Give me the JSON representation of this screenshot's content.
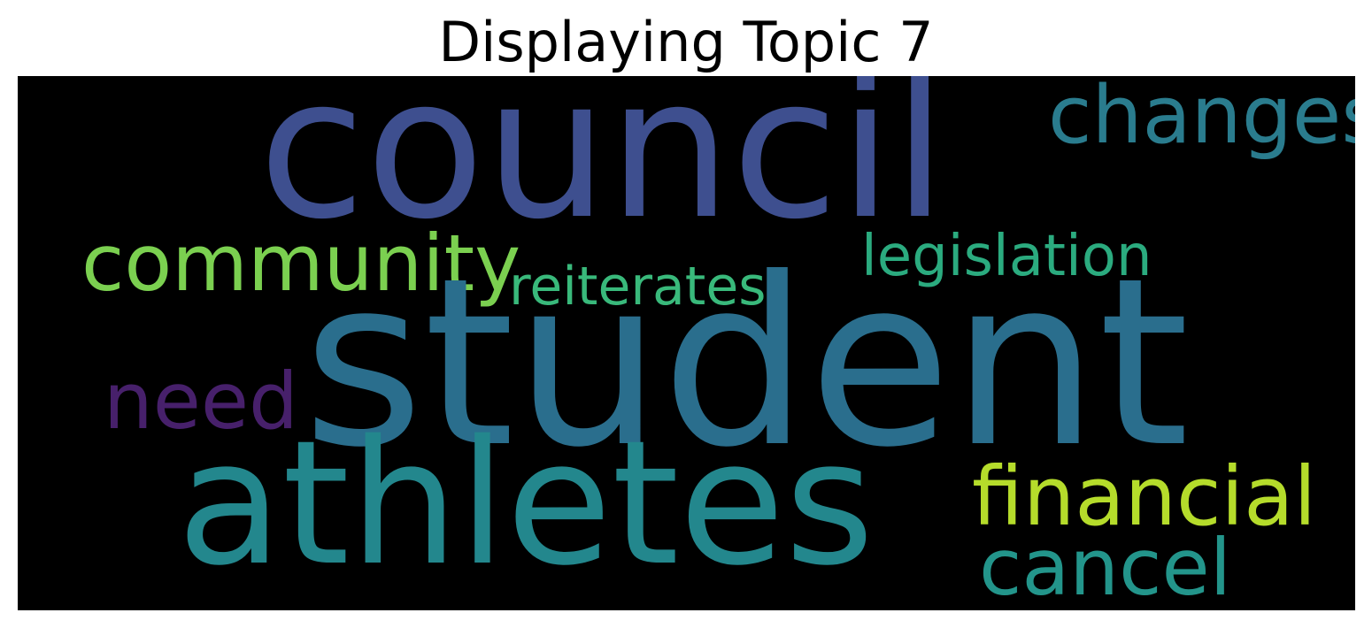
{
  "title": "Displaying Topic 7",
  "background_color": "#000000",
  "words": [
    {
      "id": "council",
      "text": "council",
      "color": "#3e4f8f"
    },
    {
      "id": "student",
      "text": "student",
      "color": "#2a6e8d"
    },
    {
      "id": "athletes",
      "text": "athletes",
      "color": "#23878d"
    },
    {
      "id": "changes",
      "text": "changes",
      "color": "#2a7c8e"
    },
    {
      "id": "community",
      "text": "community",
      "color": "#7bd050"
    },
    {
      "id": "legislation",
      "text": "legislation",
      "color": "#2bab7f"
    },
    {
      "id": "reiterates",
      "text": "reiterates",
      "color": "#39b97b"
    },
    {
      "id": "need",
      "text": "need",
      "color": "#47206b"
    },
    {
      "id": "financial",
      "text": "financial",
      "color": "#b5dc2b"
    },
    {
      "id": "cancel",
      "text": "cancel",
      "color": "#23958b"
    }
  ]
}
